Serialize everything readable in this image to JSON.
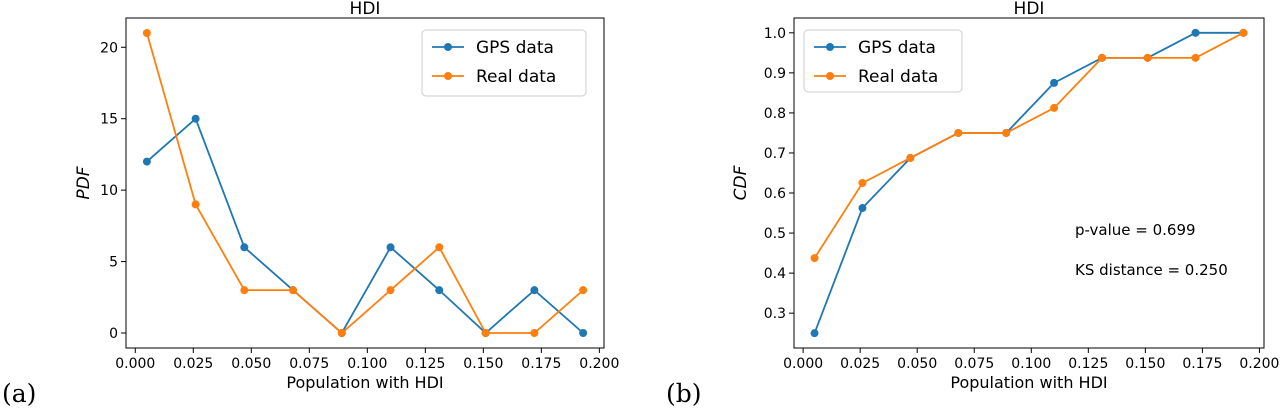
{
  "panels": [
    {
      "label": "(a)"
    },
    {
      "label": "(b)"
    }
  ],
  "colors": {
    "gps": "#1f77b4",
    "real": "#ff7f0e",
    "axis": "#000000"
  },
  "chart_data": [
    {
      "type": "line",
      "title": "HDI",
      "xlabel": "Population with HDI",
      "ylabel": "PDF",
      "xlim": [
        -0.004,
        0.202
      ],
      "ylim": [
        -1.05,
        22.05
      ],
      "xticks": [
        0.0,
        0.025,
        0.05,
        0.075,
        0.1,
        0.125,
        0.15,
        0.175,
        0.2
      ],
      "xtick_labels": [
        "0.000",
        "0.025",
        "0.050",
        "0.075",
        "0.100",
        "0.125",
        "0.150",
        "0.175",
        "0.200"
      ],
      "yticks": [
        0,
        5,
        10,
        15,
        20
      ],
      "ytick_labels": [
        "0",
        "5",
        "10",
        "15",
        "20"
      ],
      "legend": {
        "position": "top-right"
      },
      "x": [
        0.005,
        0.026,
        0.047,
        0.068,
        0.089,
        0.11,
        0.131,
        0.151,
        0.172,
        0.193
      ],
      "series": [
        {
          "name": "GPS data",
          "values": [
            12,
            15,
            6,
            3,
            0,
            6,
            3,
            0,
            3,
            0
          ]
        },
        {
          "name": "Real data",
          "values": [
            21,
            9,
            3,
            3,
            0,
            3,
            6,
            0,
            0,
            3
          ]
        }
      ],
      "annotations": []
    },
    {
      "type": "line",
      "title": "HDI",
      "xlabel": "Population with HDI",
      "ylabel": "CDF",
      "xlim": [
        -0.004,
        0.202
      ],
      "ylim": [
        0.213,
        1.037
      ],
      "xticks": [
        0.0,
        0.025,
        0.05,
        0.075,
        0.1,
        0.125,
        0.15,
        0.175,
        0.2
      ],
      "xtick_labels": [
        "0.000",
        "0.025",
        "0.050",
        "0.075",
        "0.100",
        "0.125",
        "0.150",
        "0.175",
        "0.200"
      ],
      "yticks": [
        0.3,
        0.4,
        0.5,
        0.6,
        0.7,
        0.8,
        0.9,
        1.0
      ],
      "ytick_labels": [
        "0.3",
        "0.4",
        "0.5",
        "0.6",
        "0.7",
        "0.8",
        "0.9",
        "1.0"
      ],
      "legend": {
        "position": "top-left"
      },
      "x": [
        0.005,
        0.026,
        0.047,
        0.068,
        0.089,
        0.11,
        0.131,
        0.151,
        0.172,
        0.193
      ],
      "series": [
        {
          "name": "GPS data",
          "values": [
            0.25,
            0.5625,
            0.6875,
            0.75,
            0.75,
            0.875,
            0.9375,
            0.9375,
            1.0,
            1.0
          ]
        },
        {
          "name": "Real data",
          "values": [
            0.4375,
            0.625,
            0.6875,
            0.75,
            0.75,
            0.8125,
            0.9375,
            0.9375,
            0.9375,
            1.0
          ]
        }
      ],
      "annotations": [
        "p-value = 0.699",
        "KS distance = 0.250"
      ]
    }
  ]
}
